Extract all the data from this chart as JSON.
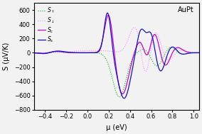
{
  "title": "AuPt",
  "xlabel": "μ (eV)",
  "ylabel": "S (μV/K)",
  "xlim": [
    -0.5,
    1.05
  ],
  "ylim": [
    -800,
    700
  ],
  "yticks": [
    -800,
    -600,
    -400,
    -200,
    0,
    200,
    400,
    600
  ],
  "xticks": [
    -0.4,
    -0.2,
    0.0,
    0.2,
    0.4,
    0.6,
    0.8,
    1.0
  ],
  "legend_labels": [
    "$S_{\\uparrow}$",
    "$S_{\\downarrow}$",
    "$S_c$",
    "$S_s$"
  ],
  "colors": {
    "S_up": "#00bb00",
    "S_down": "#ff88ff",
    "S_c": "#cc00cc",
    "S_s": "#1111cc"
  },
  "background": "#f2f2f2"
}
